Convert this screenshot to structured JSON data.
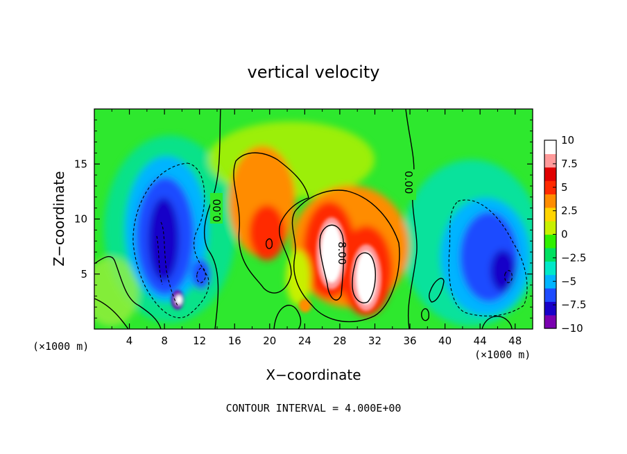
{
  "chart_data": {
    "type": "heatmap",
    "title": "vertical velocity",
    "xlabel": "X−coordinate",
    "ylabel": "Z−coordinate",
    "x_unit_left": "(×1000 m)",
    "x_unit_right": "(×1000 m)",
    "xlim": [
      0,
      50
    ],
    "ylim": [
      0,
      20
    ],
    "x_ticks": [
      4,
      8,
      12,
      16,
      20,
      24,
      28,
      32,
      36,
      40,
      44,
      48
    ],
    "y_ticks": [
      5,
      10,
      15
    ],
    "colorbar": {
      "range": [
        -10,
        10
      ],
      "ticks": [
        "10",
        "7.5",
        "5",
        "2.5",
        "0",
        "−2.5",
        "−5",
        "−7.5",
        "−10"
      ],
      "colors": [
        "#7a00b0",
        "#1800c8",
        "#1e4cff",
        "#00b4ff",
        "#00e8c8",
        "#00e060",
        "#30f000",
        "#c8f000",
        "#ffd400",
        "#ff8c00",
        "#ff2a00",
        "#e00000",
        "#ff9a9a",
        "#ffffff"
      ]
    },
    "background_color": "#2ee82e",
    "contour_labels": [
      "0.00",
      "0.00",
      "8.00"
    ],
    "features": [
      {
        "name": "downdraft-west",
        "x": 8.5,
        "z": 8.0,
        "w": -8.5
      },
      {
        "name": "downdraft-west-core",
        "x": 9.6,
        "z": 2.5,
        "w": -10
      },
      {
        "name": "updraft-1",
        "x": 20.0,
        "z": 11.0,
        "w": 6.5
      },
      {
        "name": "updraft-2",
        "x": 26.5,
        "z": 8.5,
        "w": 10
      },
      {
        "name": "updraft-3",
        "x": 30.5,
        "z": 6.0,
        "w": 10
      },
      {
        "name": "downdraft-east",
        "x": 45.0,
        "z": 7.0,
        "w": -7.5
      }
    ],
    "footer": "CONTOUR INTERVAL = 4.000E+00"
  }
}
